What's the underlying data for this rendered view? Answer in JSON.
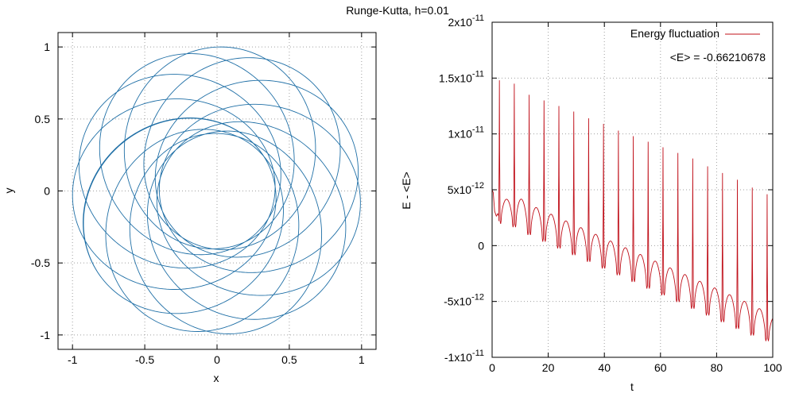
{
  "title": "Runge-Kutta, h=0.01",
  "chart_data": [
    {
      "type": "line",
      "name": "orbit",
      "xlabel": "x",
      "ylabel": "y",
      "xlim": [
        -1.1,
        1.1
      ],
      "ylim": [
        -1.1,
        1.1
      ],
      "xticks": [
        -1,
        -0.5,
        0,
        0.5,
        1
      ],
      "xtick_labels": [
        "-1",
        "-0.5",
        "0",
        "0.5",
        "1"
      ],
      "yticks": [
        -1,
        -0.5,
        0,
        0.5,
        1
      ],
      "ytick_labels": [
        "-1",
        "-0.5",
        "0",
        "0.5",
        "1"
      ],
      "grid": true,
      "series": [
        {
          "name": "orbit",
          "color": "#1f6fa6",
          "description_params": {
            "a": 0.7,
            "e": 0.43,
            "precession_turns_per_orbit": 0.0911,
            "orbits": 11.5
          }
        }
      ]
    },
    {
      "type": "line",
      "name": "energy",
      "xlabel": "t",
      "ylabel": "E - <E>",
      "xlim": [
        0,
        100
      ],
      "ylim": [
        -1e-11,
        2e-11
      ],
      "xticks": [
        0,
        20,
        40,
        60,
        80,
        100
      ],
      "xtick_labels": [
        "0",
        "20",
        "40",
        "60",
        "80",
        "100"
      ],
      "yticks": [
        -1e-11,
        -5e-12,
        0,
        5e-12,
        1e-11,
        1.5e-11,
        2e-11
      ],
      "ytick_labels": [
        {
          "mant": "-1x10",
          "exp": "-11"
        },
        {
          "mant": "-5x10",
          "exp": "-12"
        },
        {
          "mant": "0",
          "exp": ""
        },
        {
          "mant": "5x10",
          "exp": "-12"
        },
        {
          "mant": "1x10",
          "exp": "-11"
        },
        {
          "mant": "1.5x10",
          "exp": "-11"
        },
        {
          "mant": "2x10",
          "exp": "-11"
        }
      ],
      "grid": true,
      "legend": {
        "label": "Energy fluctuation",
        "position": "top-right"
      },
      "annotation": "<E> = -0.66210678",
      "series": [
        {
          "name": "Energy fluctuation",
          "color": "#c0101a",
          "period": 5.3,
          "first_spike_t": 2.6,
          "start_value": 5e-12,
          "spike_peaks": [
            1.48e-11,
            1.45e-11,
            1.35e-11,
            1.3e-11,
            1.25e-11,
            1.2e-11,
            1.14e-11,
            1.09e-11,
            1.03e-11,
            9.8e-12,
            9.3e-12,
            8.8e-12,
            8.3e-12,
            7.8e-12,
            7.1e-12,
            6.5e-12,
            5.9e-12,
            5.2e-12,
            4.6e-12,
            3.9e-12
          ],
          "hump_tops": [
            4e-12,
            3.8e-12,
            3.1e-12,
            2.5e-12,
            1.9e-12,
            1.3e-12,
            7e-13,
            1e-13,
            -5e-13,
            -1.1e-12,
            -1.7e-12,
            -2.3e-12,
            -2.9e-12,
            -3.5e-12,
            -4.1e-12,
            -4.7e-12,
            -5.3e-12,
            -5.9e-12,
            -6.5e-12
          ],
          "trough_values": [
            2.2e-12,
            1.9e-12,
            1.2e-12,
            6e-13,
            0,
            -6e-13,
            -1.2e-12,
            -1.8e-12,
            -2.4e-12,
            -3e-12,
            -3.6e-12,
            -4.2e-12,
            -4.8e-12,
            -5.4e-12,
            -6e-12,
            -6.6e-12,
            -7.2e-12,
            -7.8e-12,
            -8.3e-12,
            -8.5e-12
          ]
        }
      ]
    }
  ]
}
